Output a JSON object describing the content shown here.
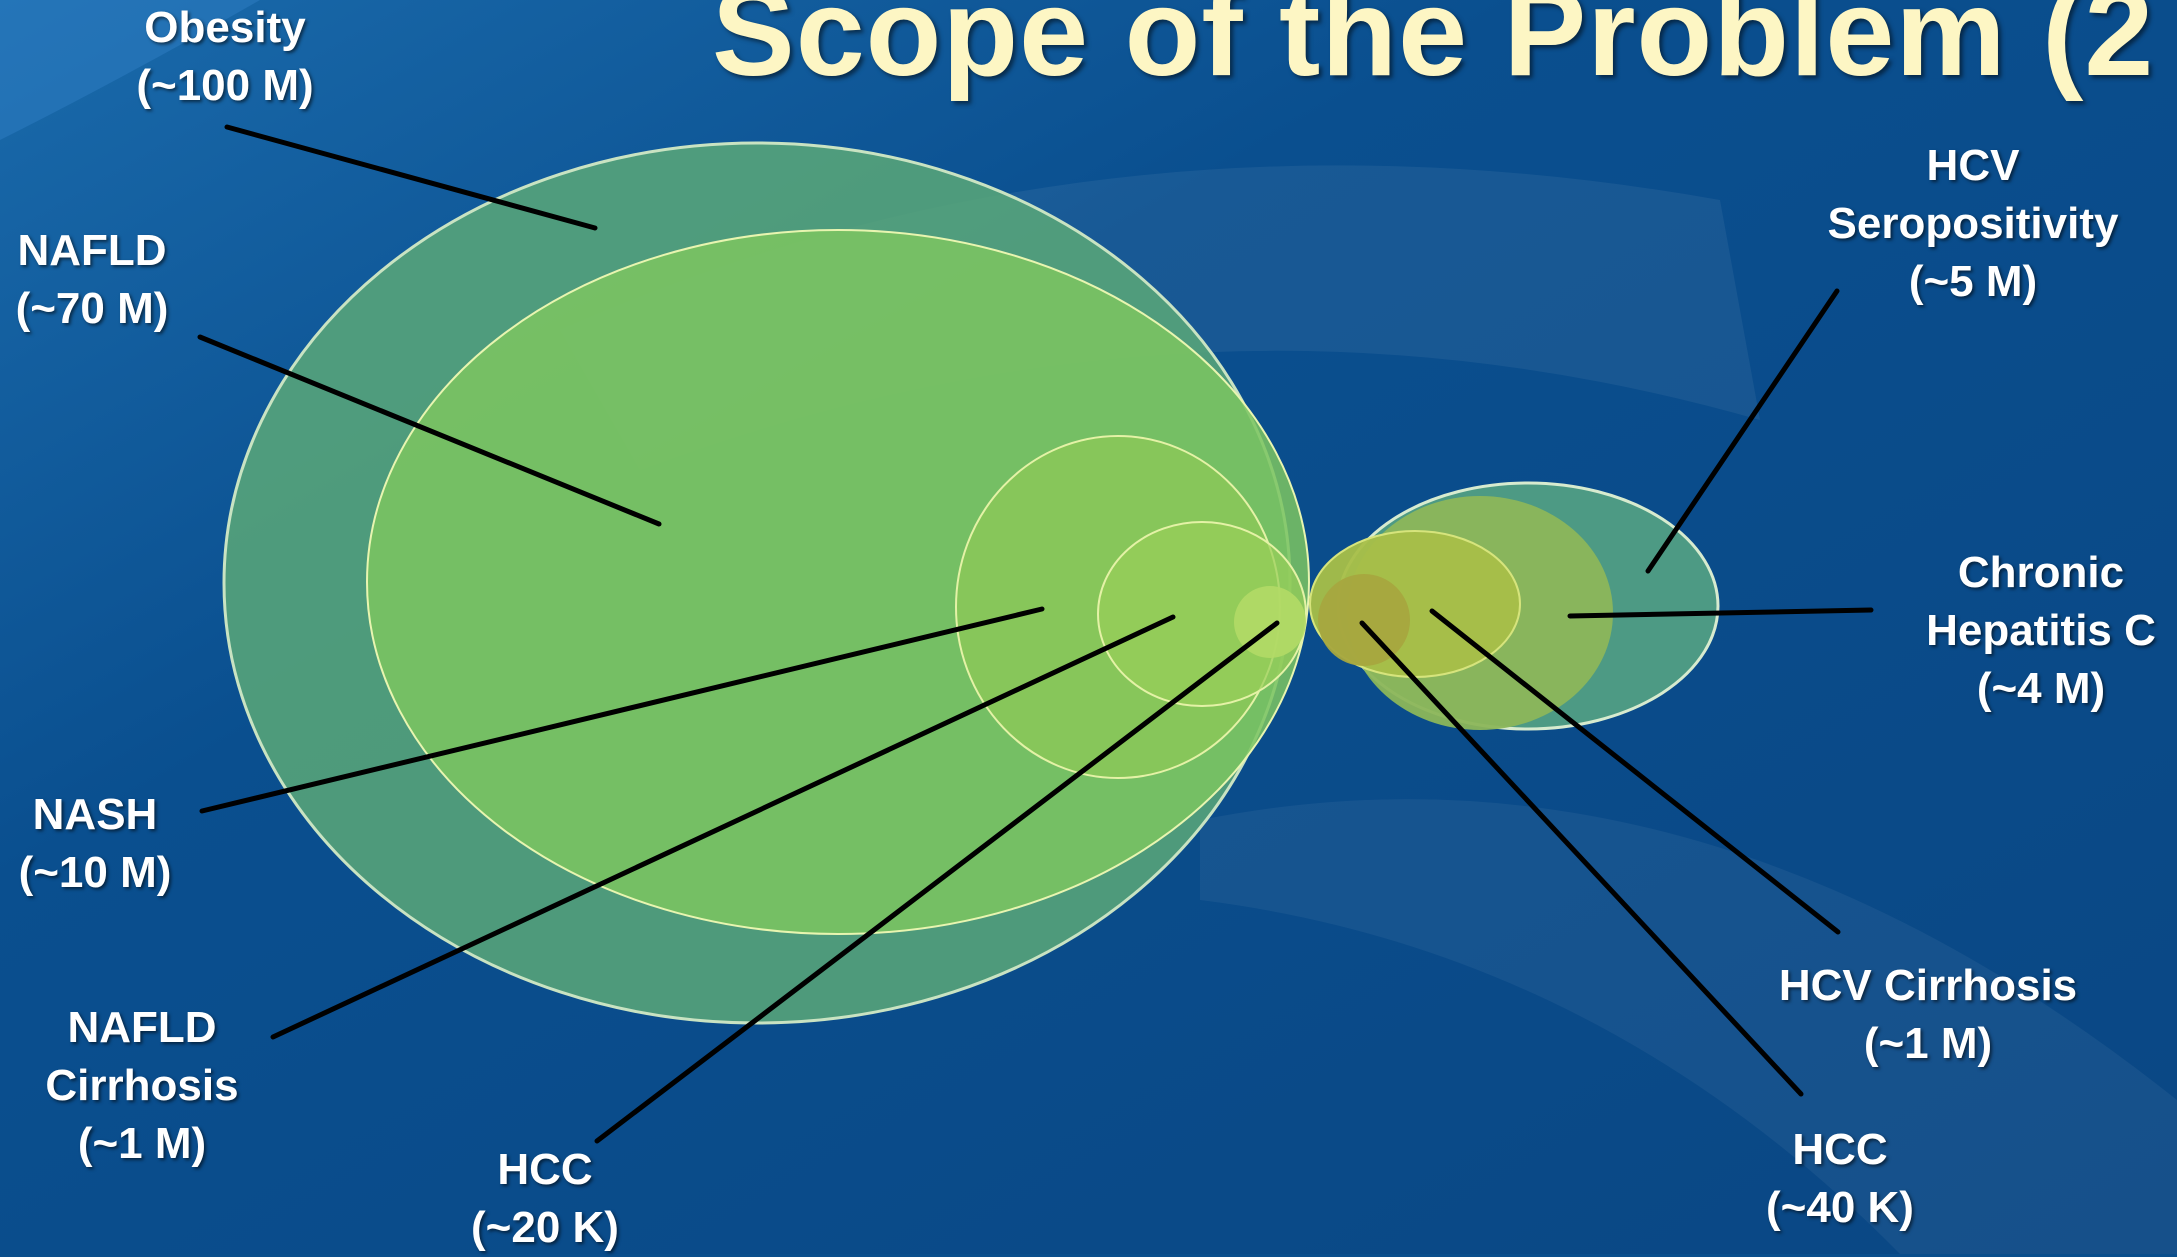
{
  "slide": {
    "title": "Scope of the Problem (2",
    "accent_color": "#fdf6c4",
    "background_color": "#0a4e8c"
  },
  "labels": {
    "obesity": [
      "Obesity",
      "(~100 M)"
    ],
    "nafld": [
      "NAFLD",
      "(~70 M)"
    ],
    "nash": [
      "NASH",
      "(~10 M)"
    ],
    "nafld_cirrhosis": [
      "NAFLD",
      "Cirrhosis",
      "(~1 M)"
    ],
    "hcc_nafld": [
      "HCC",
      "(~20 K)"
    ],
    "hcv_seropositivity": [
      "HCV",
      "Seropositivity",
      "(~5 M)"
    ],
    "chronic_hep_c": [
      "Chronic",
      "Hepatitis C",
      "(~4 M)"
    ],
    "hcv_cirrhosis": [
      "HCV Cirrhosis",
      "(~1 M)"
    ],
    "hcc_hcv": [
      "HCC",
      "(~40 K)"
    ]
  }
}
